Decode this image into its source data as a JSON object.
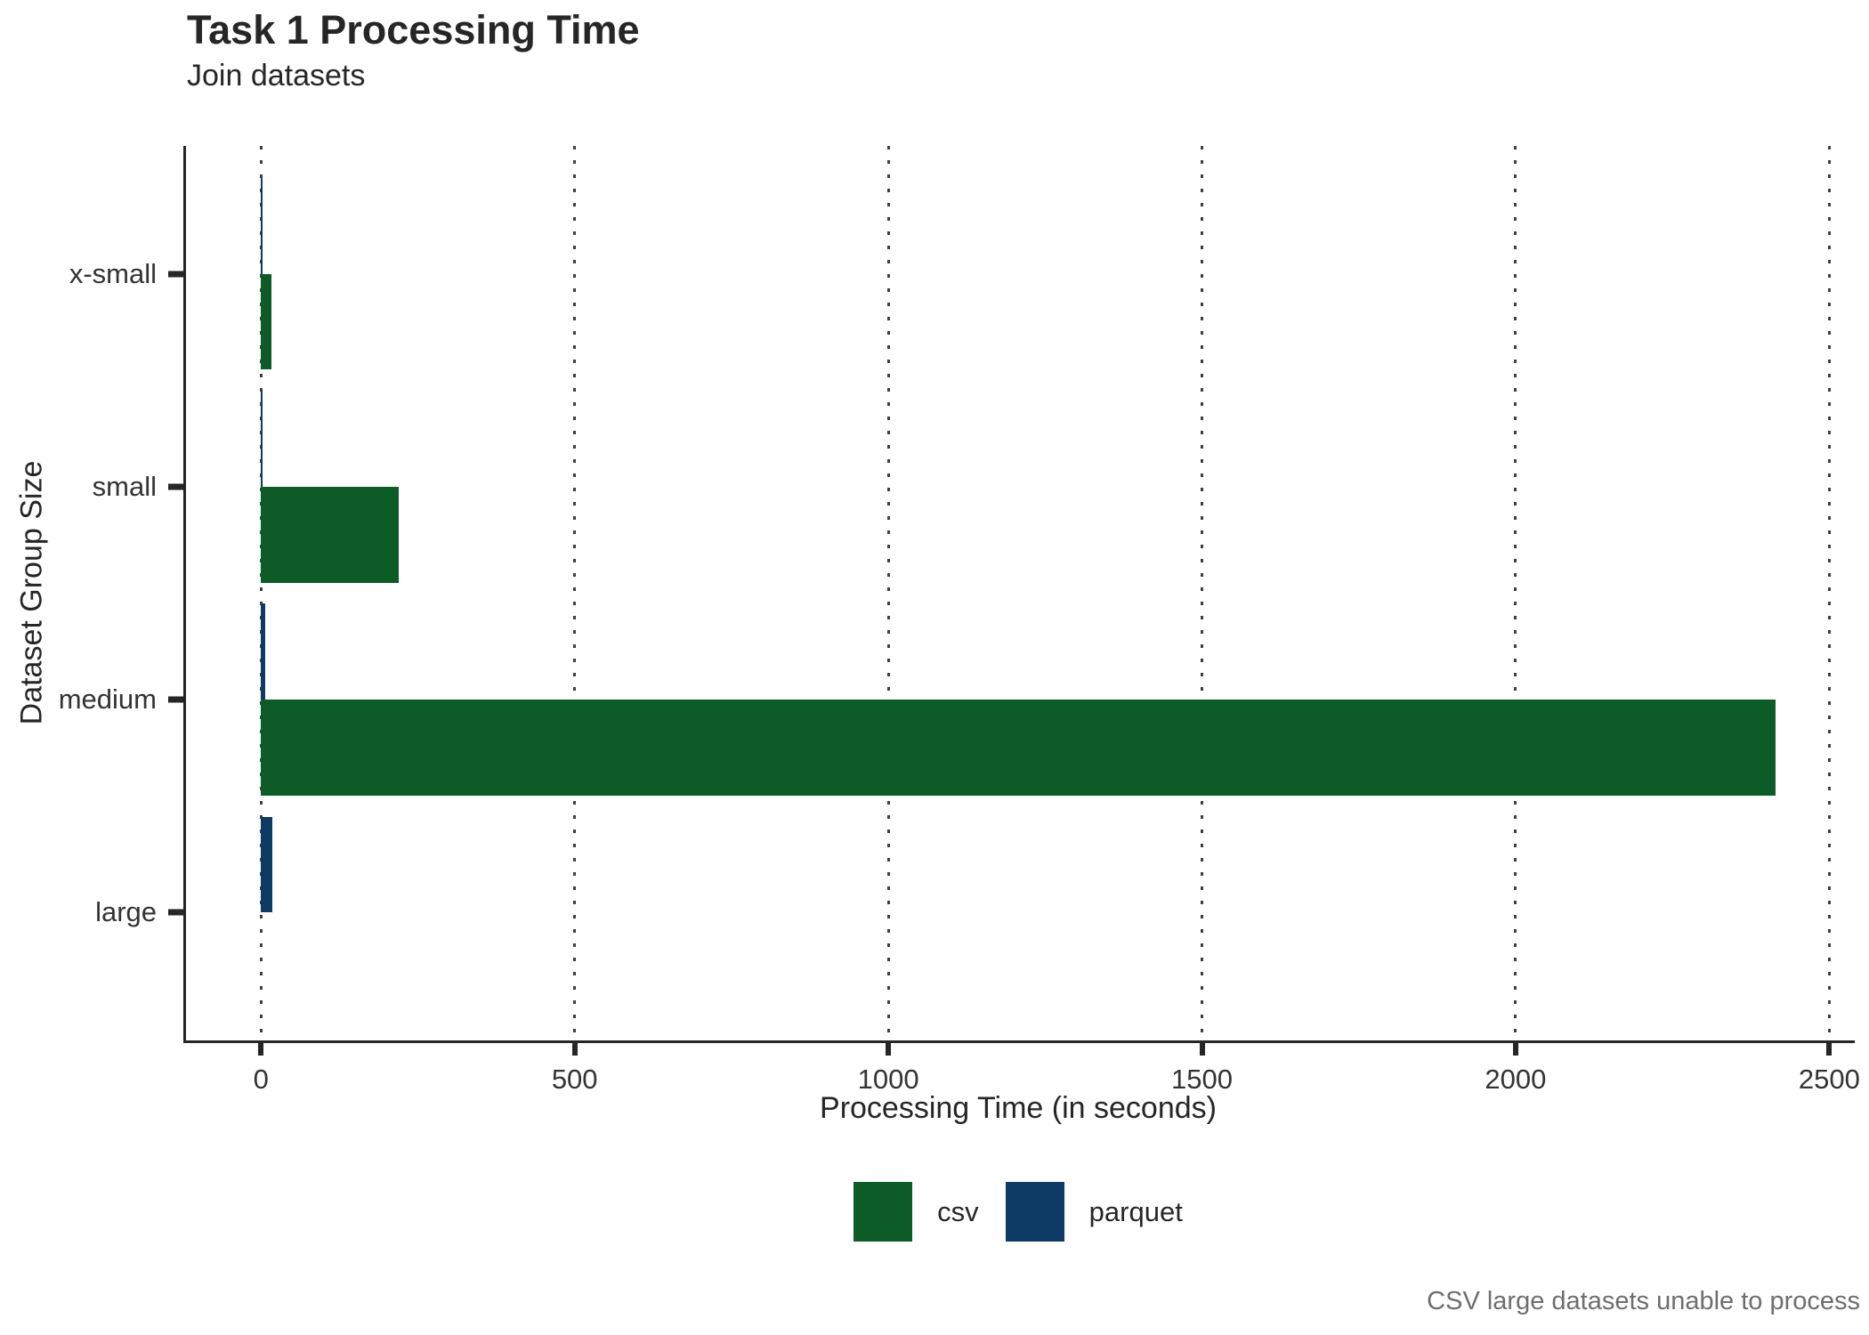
{
  "header": {
    "title": "Task 1 Processing Time",
    "subtitle": "Join datasets"
  },
  "axes": {
    "x_title": "Processing Time (in seconds)",
    "y_title": "Dataset Group Size"
  },
  "caption": "CSV large datasets unable to process",
  "legend": {
    "items": [
      {
        "label": "csv",
        "color": "#0d5c28"
      },
      {
        "label": "parquet",
        "color": "#0e3a66"
      }
    ]
  },
  "chart_data": {
    "type": "bar",
    "orientation": "horizontal",
    "title": "Task 1 Processing Time",
    "subtitle": "Join datasets",
    "xlabel": "Processing Time (in seconds)",
    "ylabel": "Dataset Group Size",
    "categories": [
      "x-small",
      "small",
      "medium",
      "large"
    ],
    "series": [
      {
        "name": "csv",
        "color": "#0d5c28",
        "values": [
          16,
          220,
          2414,
          null
        ]
      },
      {
        "name": "parquet",
        "color": "#0e3a66",
        "values": [
          1,
          2,
          6,
          18
        ]
      }
    ],
    "dodge_order": [
      "parquet",
      "csv"
    ],
    "x_ticks": [
      0,
      500,
      1000,
      1500,
      2000,
      2500
    ],
    "xlim": [
      0,
      2500
    ],
    "xlim_display": [
      -121,
      2535
    ],
    "grid": "vertical-dotted",
    "legend_position": "bottom",
    "annotation": "CSV large datasets unable to process"
  }
}
